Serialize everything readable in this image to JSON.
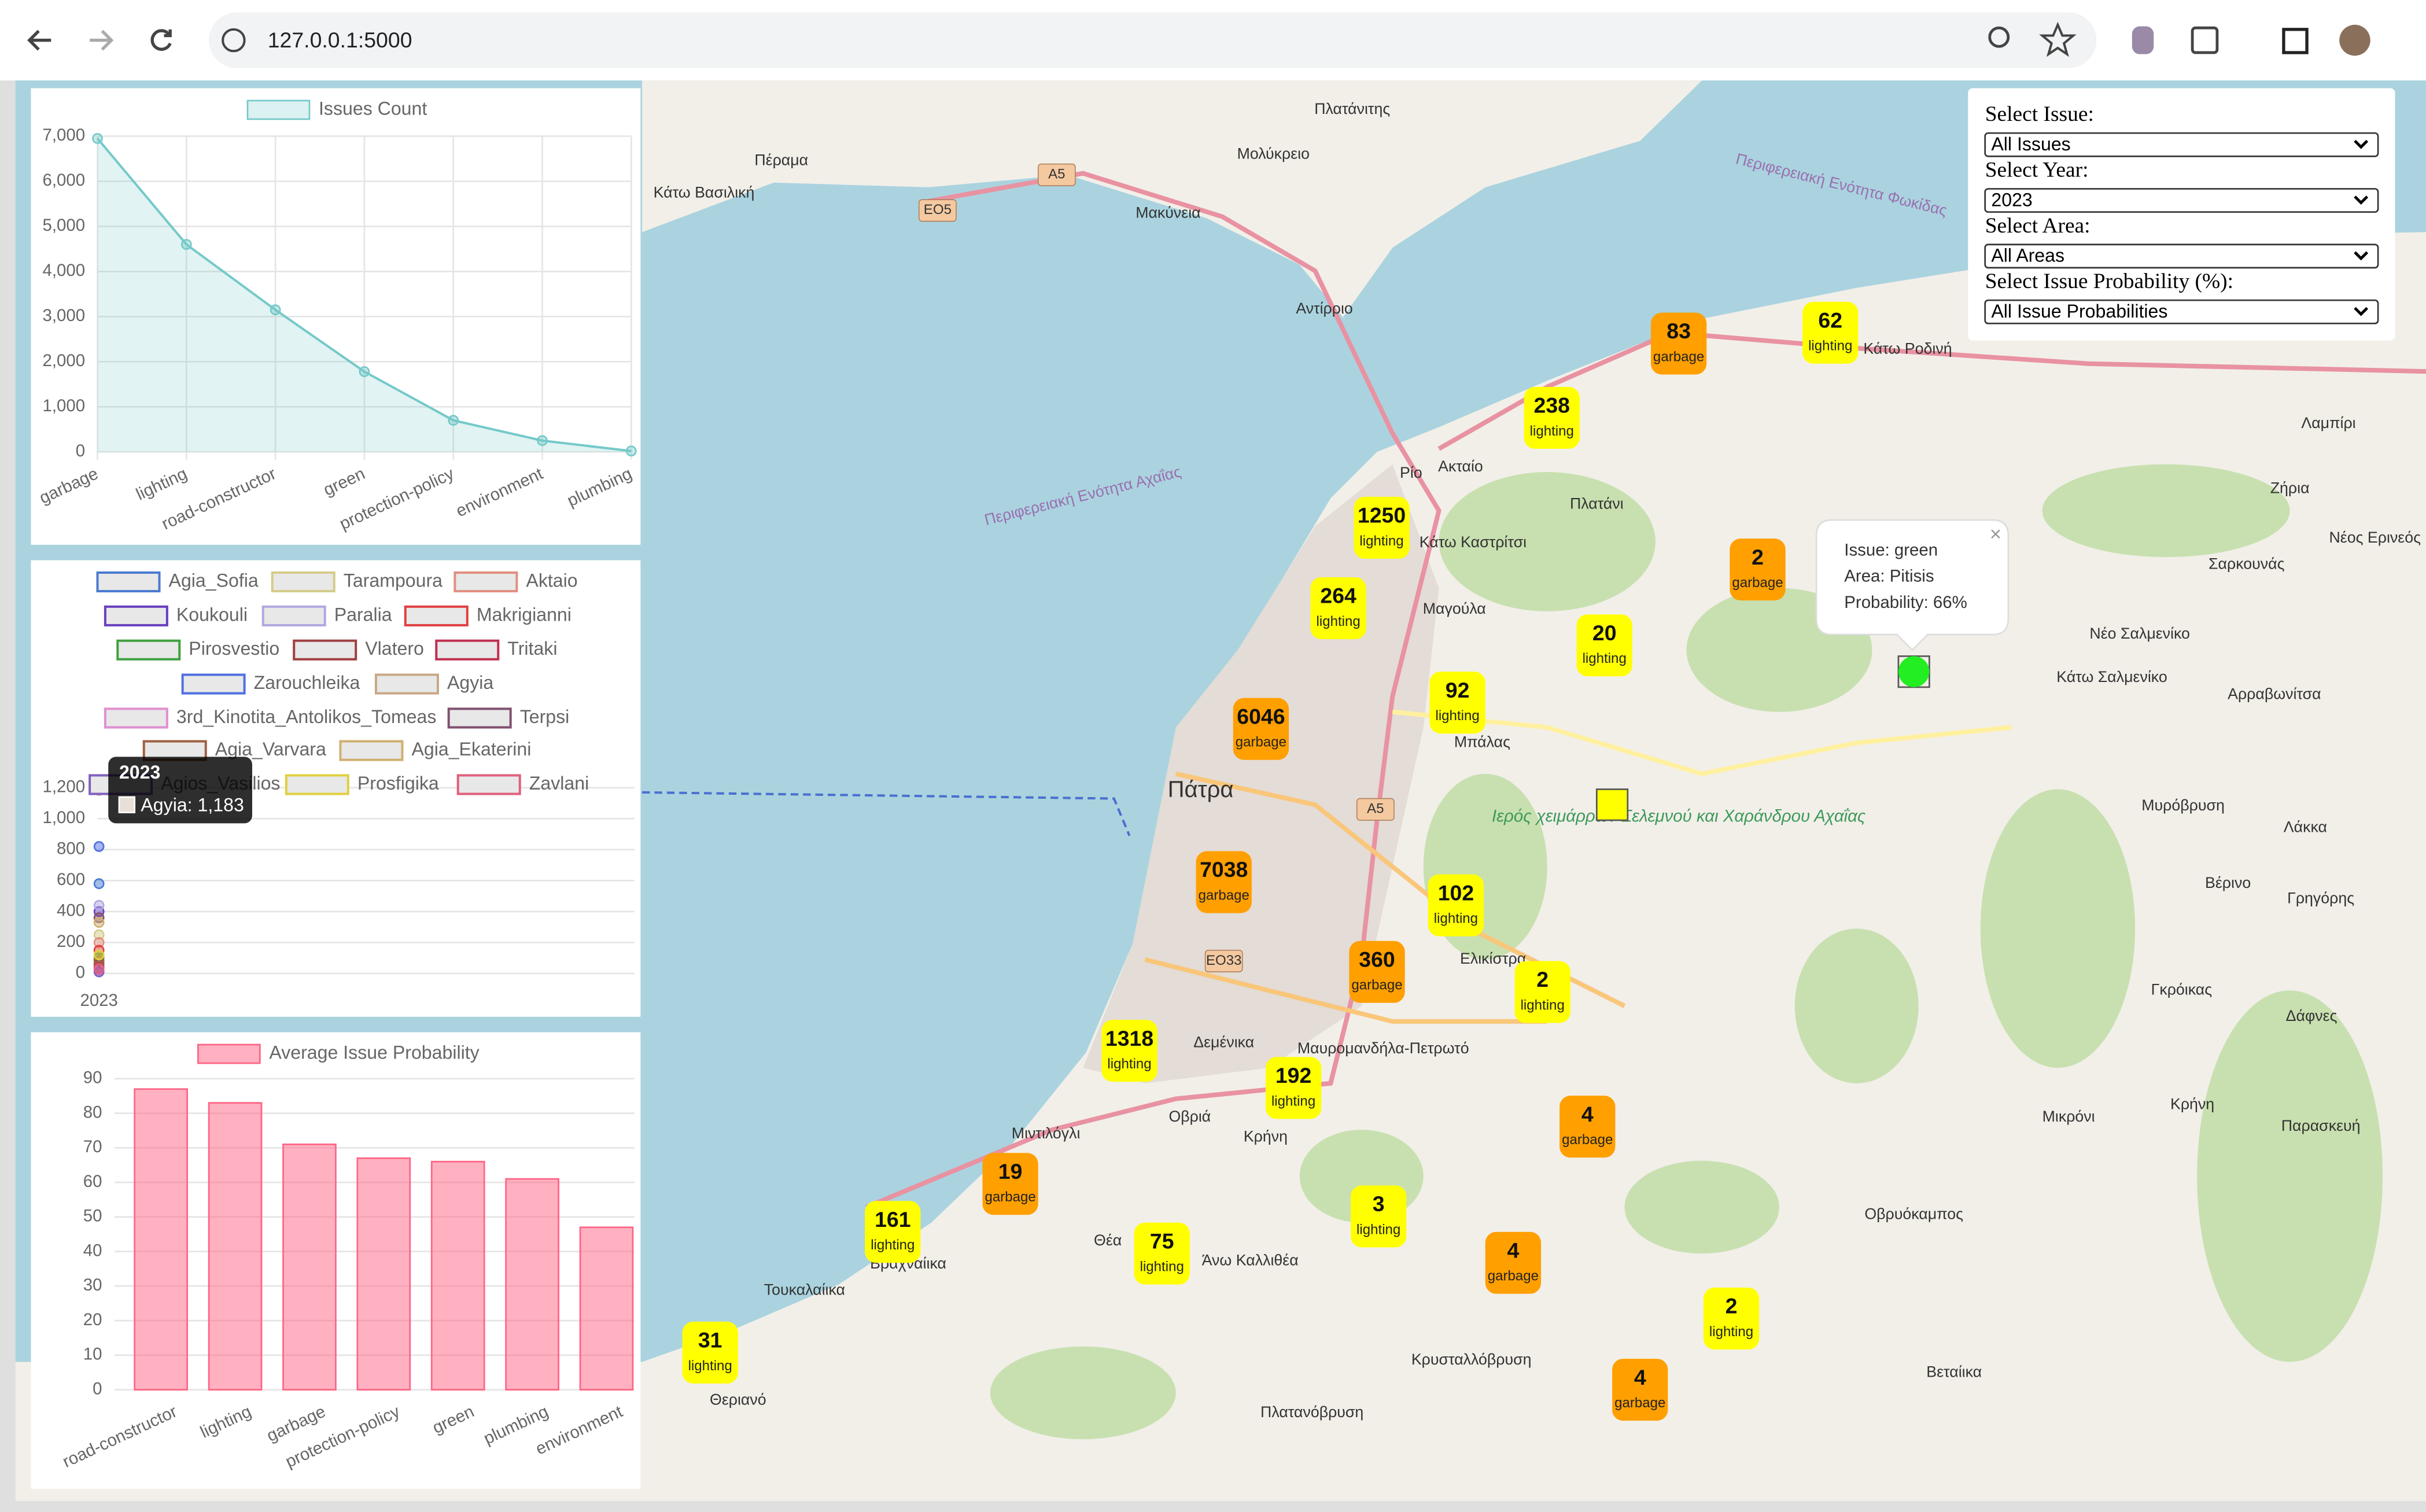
{
  "browser": {
    "url": "127.0.0.1:5000"
  },
  "chart_data": [
    {
      "type": "line",
      "legend": "Issues Count",
      "color": "#75c9c9",
      "categories": [
        "garbage",
        "lighting",
        "road-constructor",
        "green",
        "protection-policy",
        "environment",
        "plumbing"
      ],
      "values": [
        6950,
        4600,
        3150,
        1780,
        700,
        250,
        20
      ],
      "ylim": [
        0,
        7000
      ],
      "yticks": [
        0,
        {
          "value": 1000,
          "label": "1,000"
        },
        {
          "value": 2000,
          "label": "2,000"
        },
        {
          "value": 3000,
          "label": "3,000"
        },
        {
          "value": 4000,
          "label": "4,000"
        },
        {
          "value": 5000,
          "label": "5,000"
        },
        {
          "value": 6000,
          "label": "6,000"
        },
        {
          "value": 7000,
          "label": "7,000"
        }
      ],
      "grid": true
    },
    {
      "type": "line",
      "categories": [
        "2023"
      ],
      "series": [
        {
          "name": "Agia_Sofia",
          "color": "#4a7bd0",
          "values": [
            580
          ]
        },
        {
          "name": "Tarampoura",
          "color": "#d4cc8a",
          "values": [
            250
          ]
        },
        {
          "name": "Aktaio",
          "color": "#e09080",
          "values": [
            200
          ]
        },
        {
          "name": "Koukouli",
          "color": "#6a3fc0",
          "values": [
            400
          ]
        },
        {
          "name": "Paralia",
          "color": "#b0a8e0",
          "values": [
            440
          ]
        },
        {
          "name": "Makrigianni",
          "color": "#e04040",
          "values": [
            150
          ]
        },
        {
          "name": "Pirosvestio",
          "color": "#40a040",
          "values": [
            100
          ]
        },
        {
          "name": "Vlatero",
          "color": "#a04040",
          "values": [
            60
          ]
        },
        {
          "name": "Tritaki",
          "color": "#c03050",
          "values": [
            40
          ]
        },
        {
          "name": "Zarouchleika",
          "color": "#5070e0",
          "values": [
            820
          ]
        },
        {
          "name": "Agyia",
          "color": "#c8a888",
          "values": [
            1183
          ]
        },
        {
          "name": "3rd_Kinotita_Antolikos_Tomeas",
          "color": "#e090d0",
          "values": [
            20
          ]
        },
        {
          "name": "Terpsi",
          "color": "#805070",
          "values": [
            360
          ]
        },
        {
          "name": "Agia_Varvara",
          "color": "#a06040",
          "values": [
            80
          ]
        },
        {
          "name": "Agia_Ekaterini",
          "color": "#d0b070",
          "values": [
            330
          ]
        },
        {
          "name": "Agios_Vasilios",
          "color": "#8060c0",
          "values": [
            10
          ]
        },
        {
          "name": "Prosfigika",
          "color": "#e0d040",
          "values": [
            120
          ]
        },
        {
          "name": "Zavlani",
          "color": "#e06080",
          "values": [
            30
          ]
        }
      ],
      "ylim": [
        0,
        1200
      ],
      "yticks": [
        0,
        200,
        400,
        600,
        800,
        {
          "value": 1000,
          "label": "1,000"
        },
        {
          "value": 1200,
          "label": "1,200"
        }
      ],
      "grid": true,
      "tooltip": {
        "title": "2023",
        "text": "Agyia: 1,183"
      }
    },
    {
      "type": "bar",
      "legend": "Average Issue Probability",
      "color": "#ff6384",
      "categories": [
        "road-constructor",
        "lighting",
        "garbage",
        "protection-policy",
        "green",
        "plumbing",
        "environment"
      ],
      "values": [
        87,
        83,
        71,
        67,
        66,
        61,
        47
      ],
      "ylim": [
        0,
        90
      ],
      "yticks": [
        0,
        10,
        20,
        30,
        40,
        50,
        60,
        70,
        80,
        90
      ],
      "grid": true
    }
  ],
  "controls": [
    {
      "label": "Select Issue:",
      "selected": "All Issues"
    },
    {
      "label": "Select Year:",
      "selected": "2023"
    },
    {
      "label": "Select Area:",
      "selected": "All Areas"
    },
    {
      "label": "Select Issue Probability (%):",
      "selected": "All Issue Probabilities"
    }
  ],
  "map": {
    "markers": [
      {
        "count": 83,
        "label": "garbage",
        "color": "#ff9f00"
      },
      {
        "count": 62,
        "label": "lighting",
        "color": "#ffff00"
      },
      {
        "count": 238,
        "label": "lighting",
        "color": "#ffff00"
      },
      {
        "count": 1250,
        "label": "lighting",
        "color": "#ffff00"
      },
      {
        "count": 2,
        "label": "garbage",
        "color": "#ff9f00"
      },
      {
        "count": 264,
        "label": "lighting",
        "color": "#ffff00"
      },
      {
        "count": 20,
        "label": "lighting",
        "color": "#ffff00"
      },
      {
        "count": 92,
        "label": "lighting",
        "color": "#ffff00"
      },
      {
        "count": 6046,
        "label": "garbage",
        "color": "#ff9f00"
      },
      {
        "count": 7038,
        "label": "garbage",
        "color": "#ff9f00"
      },
      {
        "count": 102,
        "label": "lighting",
        "color": "#ffff00"
      },
      {
        "count": 360,
        "label": "garbage",
        "color": "#ff9f00"
      },
      {
        "count": 2,
        "label": "lighting",
        "color": "#ffff00"
      },
      {
        "count": 1318,
        "label": "lighting",
        "color": "#ffff00"
      },
      {
        "count": 192,
        "label": "lighting",
        "color": "#ffff00"
      },
      {
        "count": 4,
        "label": "garbage",
        "color": "#ff9f00"
      },
      {
        "count": 19,
        "label": "garbage",
        "color": "#ff9f00"
      },
      {
        "count": 3,
        "label": "lighting",
        "color": "#ffff00"
      },
      {
        "count": 161,
        "label": "lighting",
        "color": "#ffff00"
      },
      {
        "count": 75,
        "label": "lighting",
        "color": "#ffff00"
      },
      {
        "count": 4,
        "label": "garbage",
        "color": "#ff9f00"
      },
      {
        "count": 2,
        "label": "lighting",
        "color": "#ffff00"
      },
      {
        "count": 31,
        "label": "lighting",
        "color": "#ffff00"
      },
      {
        "count": 4,
        "label": "garbage",
        "color": "#ff9f00"
      }
    ],
    "places": [
      "Πλατάνιτης",
      "Μολύκρειο",
      "Πέραμα",
      "Κάτω Βασιλική",
      "Μακύνεια",
      "Αντίρριο",
      "Ρίο",
      "Ακταίο",
      "Πλατάνι",
      "Κάτω Καστρίτσι",
      "Μαγούλα",
      "Πάτρα",
      "Μπάλας",
      "Ελικίστρα",
      "Δεμένικα",
      "Οβριά",
      "Κρήνη",
      "Μιντιλόγλι",
      "Θέα",
      "Άνω Καλλιθέα",
      "Βραχναίικα",
      "Τουκαλαίικα",
      "Θεριανό",
      "Κρυσταλλόβρυση",
      "Πλατανόβρυση",
      "Οβρυόκαμπος",
      "Βεταίικα",
      "Μυρόβρυση",
      "Βέρινο",
      "Γρηγόρης",
      "Γκρόικας",
      "Δάφνες",
      "Κρήνη",
      "Μικρόνι",
      "Παρασκευή",
      "Λάκκα",
      "Αρραβωνίτσα",
      "Κάτω Σαλμενίκο",
      "Νέο Σαλμενίκο",
      "Σαρκουνάς",
      "Ζήρια",
      "Νέος Ερινεός",
      "Λαμπίρι",
      "Κάτω Ροδινή",
      "Μαυρομανδήλα-Πετρωτό",
      "Περιφερειακή Ενότητα Αχαΐας",
      "Περιφερειακή Ενότητα Φωκίδας"
    ],
    "road_labels": [
      "A5",
      "EO5",
      "A5",
      "EO33"
    ],
    "reserve": "Ιερός χειμάρρων Σελεμνού και Χαράνδρου Αχαΐας",
    "popup": {
      "lines": [
        "Issue: green",
        "Area: Pitisis",
        "Probability: 66%"
      ]
    }
  }
}
